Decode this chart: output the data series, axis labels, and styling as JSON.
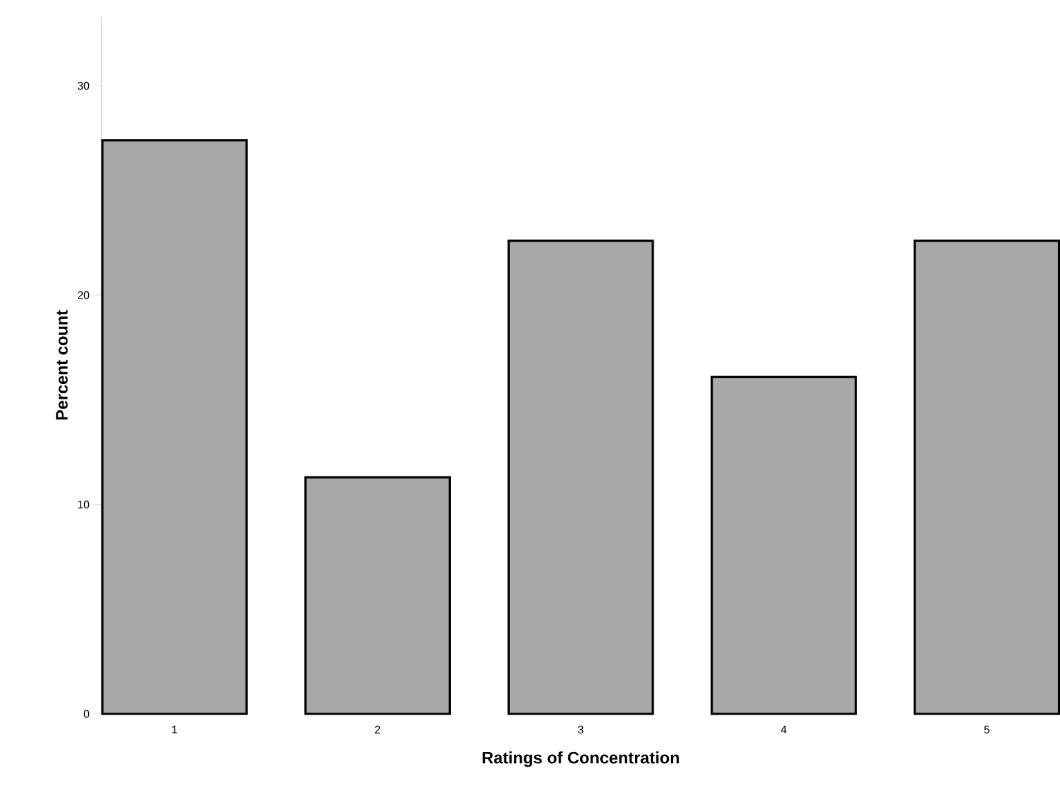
{
  "chart_data": {
    "type": "bar",
    "xlabel": "Ratings of Concentration",
    "ylabel": "Percent count",
    "categories": [
      "1",
      "2",
      "3",
      "4",
      "5"
    ],
    "values": [
      27.4,
      11.3,
      22.6,
      16.1,
      22.6
    ],
    "color": "#a8a8a8",
    "ylim": [
      0,
      33.3
    ],
    "yticks": [
      0,
      10,
      20,
      30
    ]
  }
}
